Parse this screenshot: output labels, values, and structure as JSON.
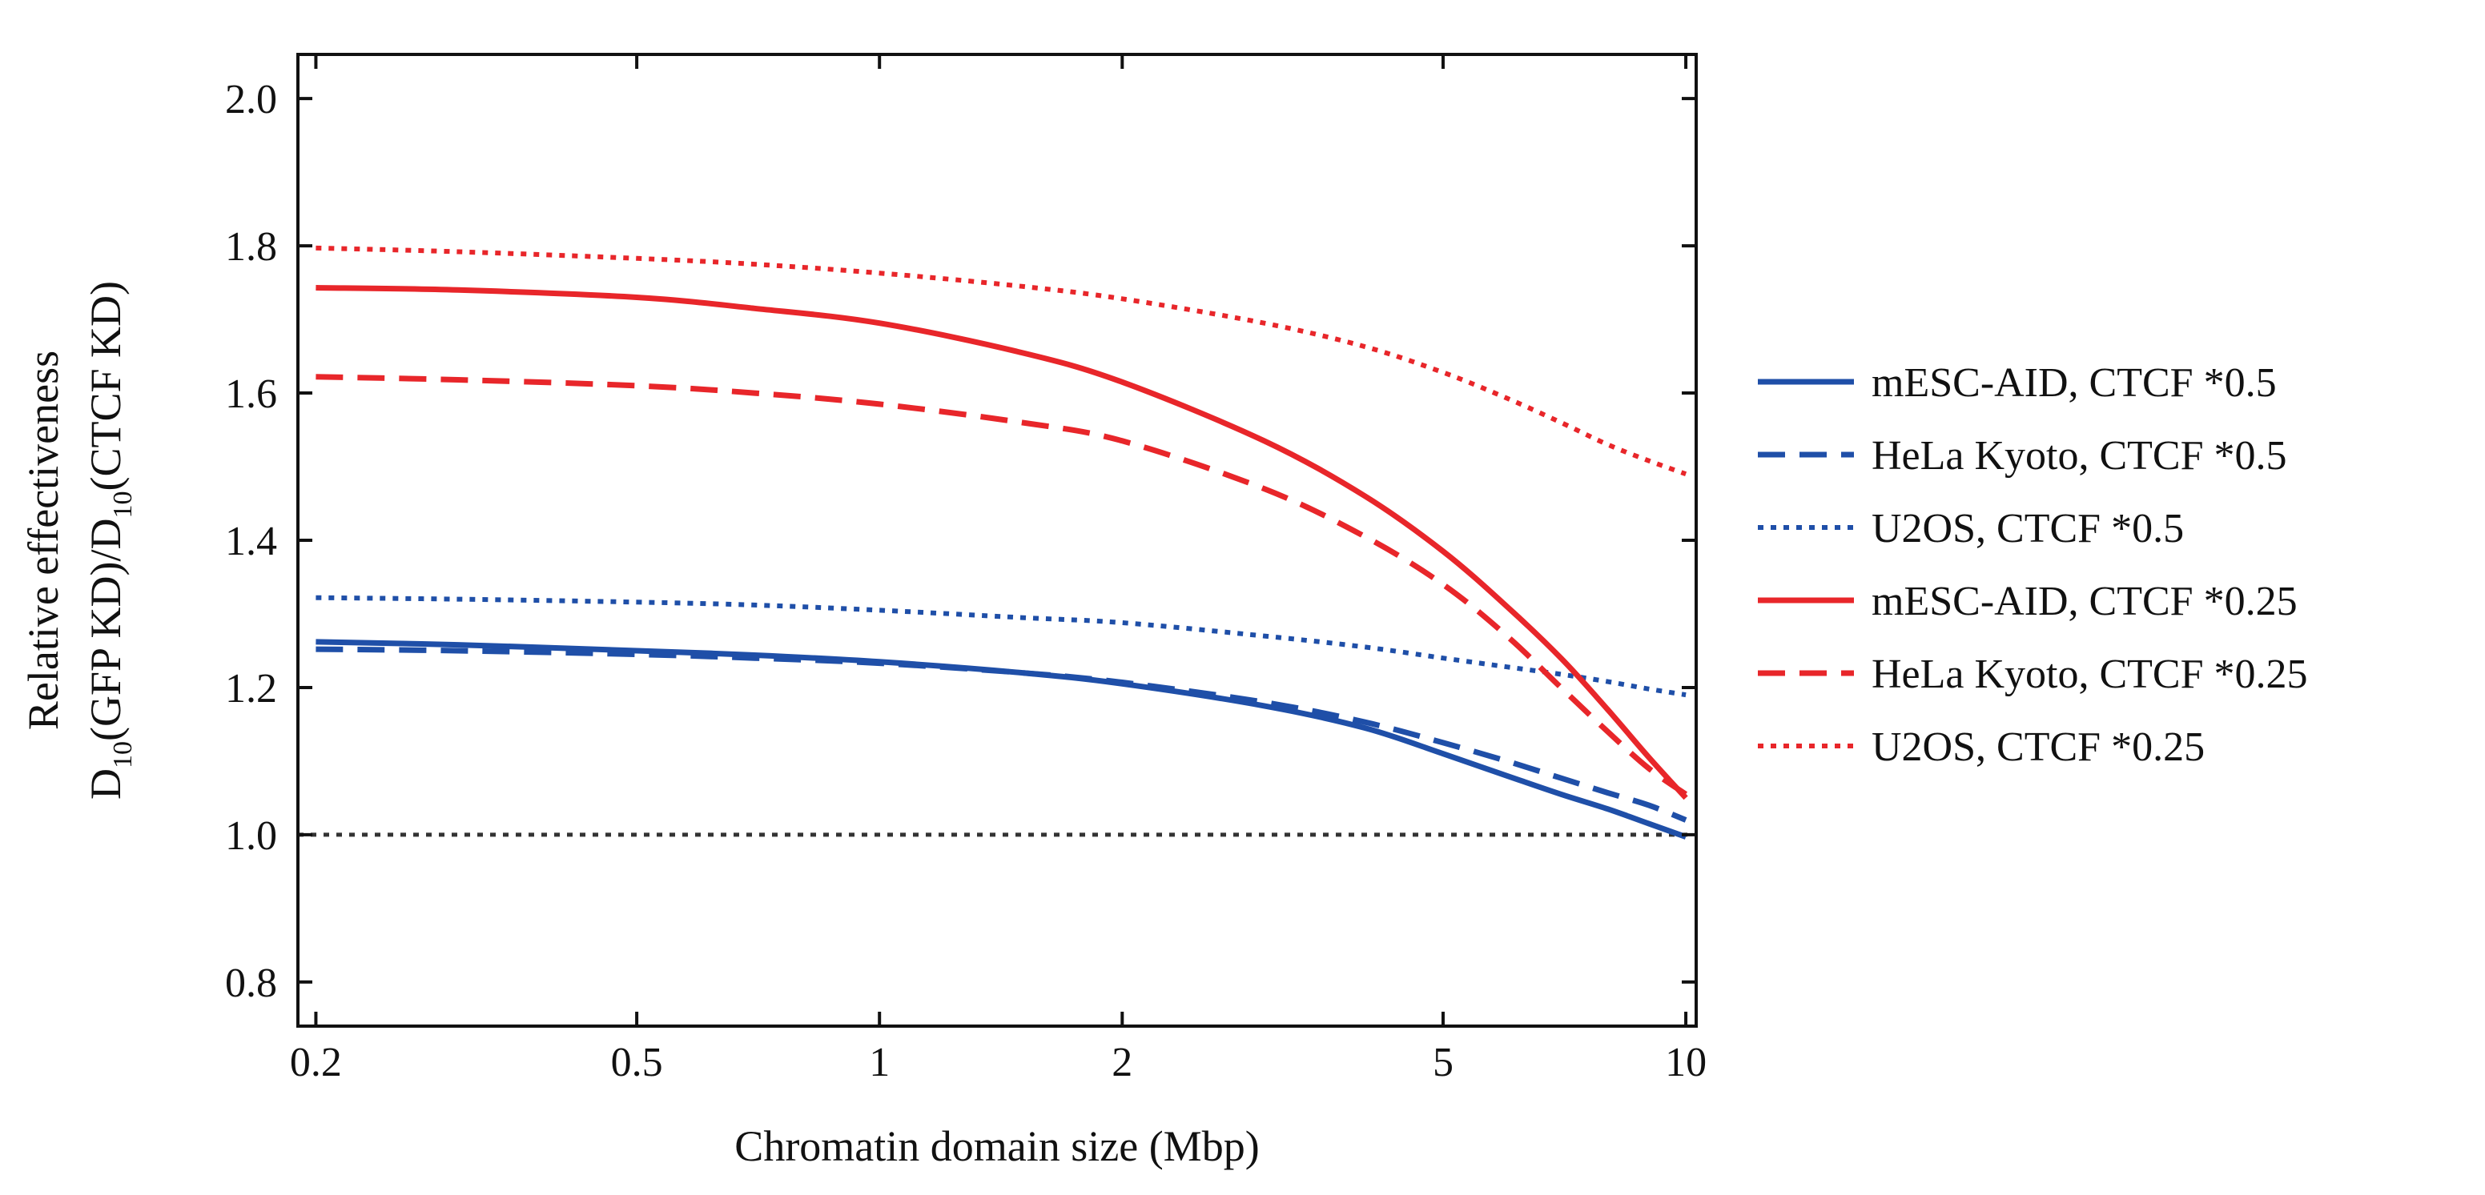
{
  "chart_data": {
    "type": "line",
    "title": "",
    "xlabel": "Chromatin domain size (Mbp)",
    "ylabel_line1": "Relative effectiveness",
    "ylabel_line2": {
      "d1": "D",
      "sub1": "10",
      "mid": "(GFP KD)/D",
      "sub2": "10",
      "end": "(CTCF KD)"
    },
    "xscale": "log",
    "xlim": [
      0.19,
      10.3
    ],
    "ylim": [
      0.74,
      2.06
    ],
    "x_ticks": [
      0.2,
      0.5,
      1,
      2,
      5,
      10
    ],
    "x_tick_labels": [
      "0.2",
      "0.5",
      "1",
      "2",
      "5",
      "10"
    ],
    "y_ticks": [
      0.8,
      1.0,
      1.2,
      1.4,
      1.6,
      1.8,
      2.0
    ],
    "y_tick_labels": [
      "0.8",
      "1.0",
      "1.2",
      "1.4",
      "1.6",
      "1.8",
      "2.0"
    ],
    "legend_position": "right-outside",
    "reference_line": {
      "y": 1.0,
      "color": "#333333",
      "style": "dotted"
    },
    "x": [
      0.2,
      0.3,
      0.5,
      0.7,
      1,
      1.5,
      2,
      3,
      4,
      5,
      6,
      7,
      8,
      9,
      10
    ],
    "series": [
      {
        "name": "mESC-AID, CTCF *0.5",
        "color": "#1f4fa8",
        "style": "solid",
        "values": [
          1.262,
          1.258,
          1.25,
          1.244,
          1.235,
          1.22,
          1.205,
          1.175,
          1.145,
          1.11,
          1.08,
          1.055,
          1.035,
          1.015,
          0.997
        ]
      },
      {
        "name": "HeLa Kyoto, CTCF *0.5",
        "color": "#1f4fa8",
        "style": "dashed",
        "values": [
          1.252,
          1.25,
          1.245,
          1.24,
          1.233,
          1.22,
          1.207,
          1.18,
          1.153,
          1.125,
          1.1,
          1.077,
          1.057,
          1.04,
          1.02
        ]
      },
      {
        "name": "U2OS, CTCF *0.5",
        "color": "#1f4fa8",
        "style": "dotted",
        "values": [
          1.322,
          1.32,
          1.316,
          1.312,
          1.305,
          1.295,
          1.288,
          1.27,
          1.255,
          1.24,
          1.228,
          1.218,
          1.208,
          1.198,
          1.19
        ]
      },
      {
        "name": "mESC-AID, CTCF *0.25",
        "color": "#e8262a",
        "style": "solid",
        "values": [
          1.743,
          1.74,
          1.73,
          1.715,
          1.695,
          1.655,
          1.615,
          1.535,
          1.46,
          1.385,
          1.31,
          1.24,
          1.17,
          1.105,
          1.05
        ]
      },
      {
        "name": "HeLa Kyoto, CTCF *0.25",
        "color": "#e8262a",
        "style": "dashed",
        "values": [
          1.622,
          1.618,
          1.61,
          1.6,
          1.585,
          1.56,
          1.535,
          1.47,
          1.405,
          1.34,
          1.27,
          1.2,
          1.14,
          1.09,
          1.055
        ]
      },
      {
        "name": "U2OS, CTCF *0.25",
        "color": "#e8262a",
        "style": "dotted",
        "values": [
          1.797,
          1.792,
          1.783,
          1.775,
          1.763,
          1.745,
          1.728,
          1.695,
          1.663,
          1.628,
          1.593,
          1.56,
          1.53,
          1.508,
          1.49
        ]
      }
    ]
  }
}
